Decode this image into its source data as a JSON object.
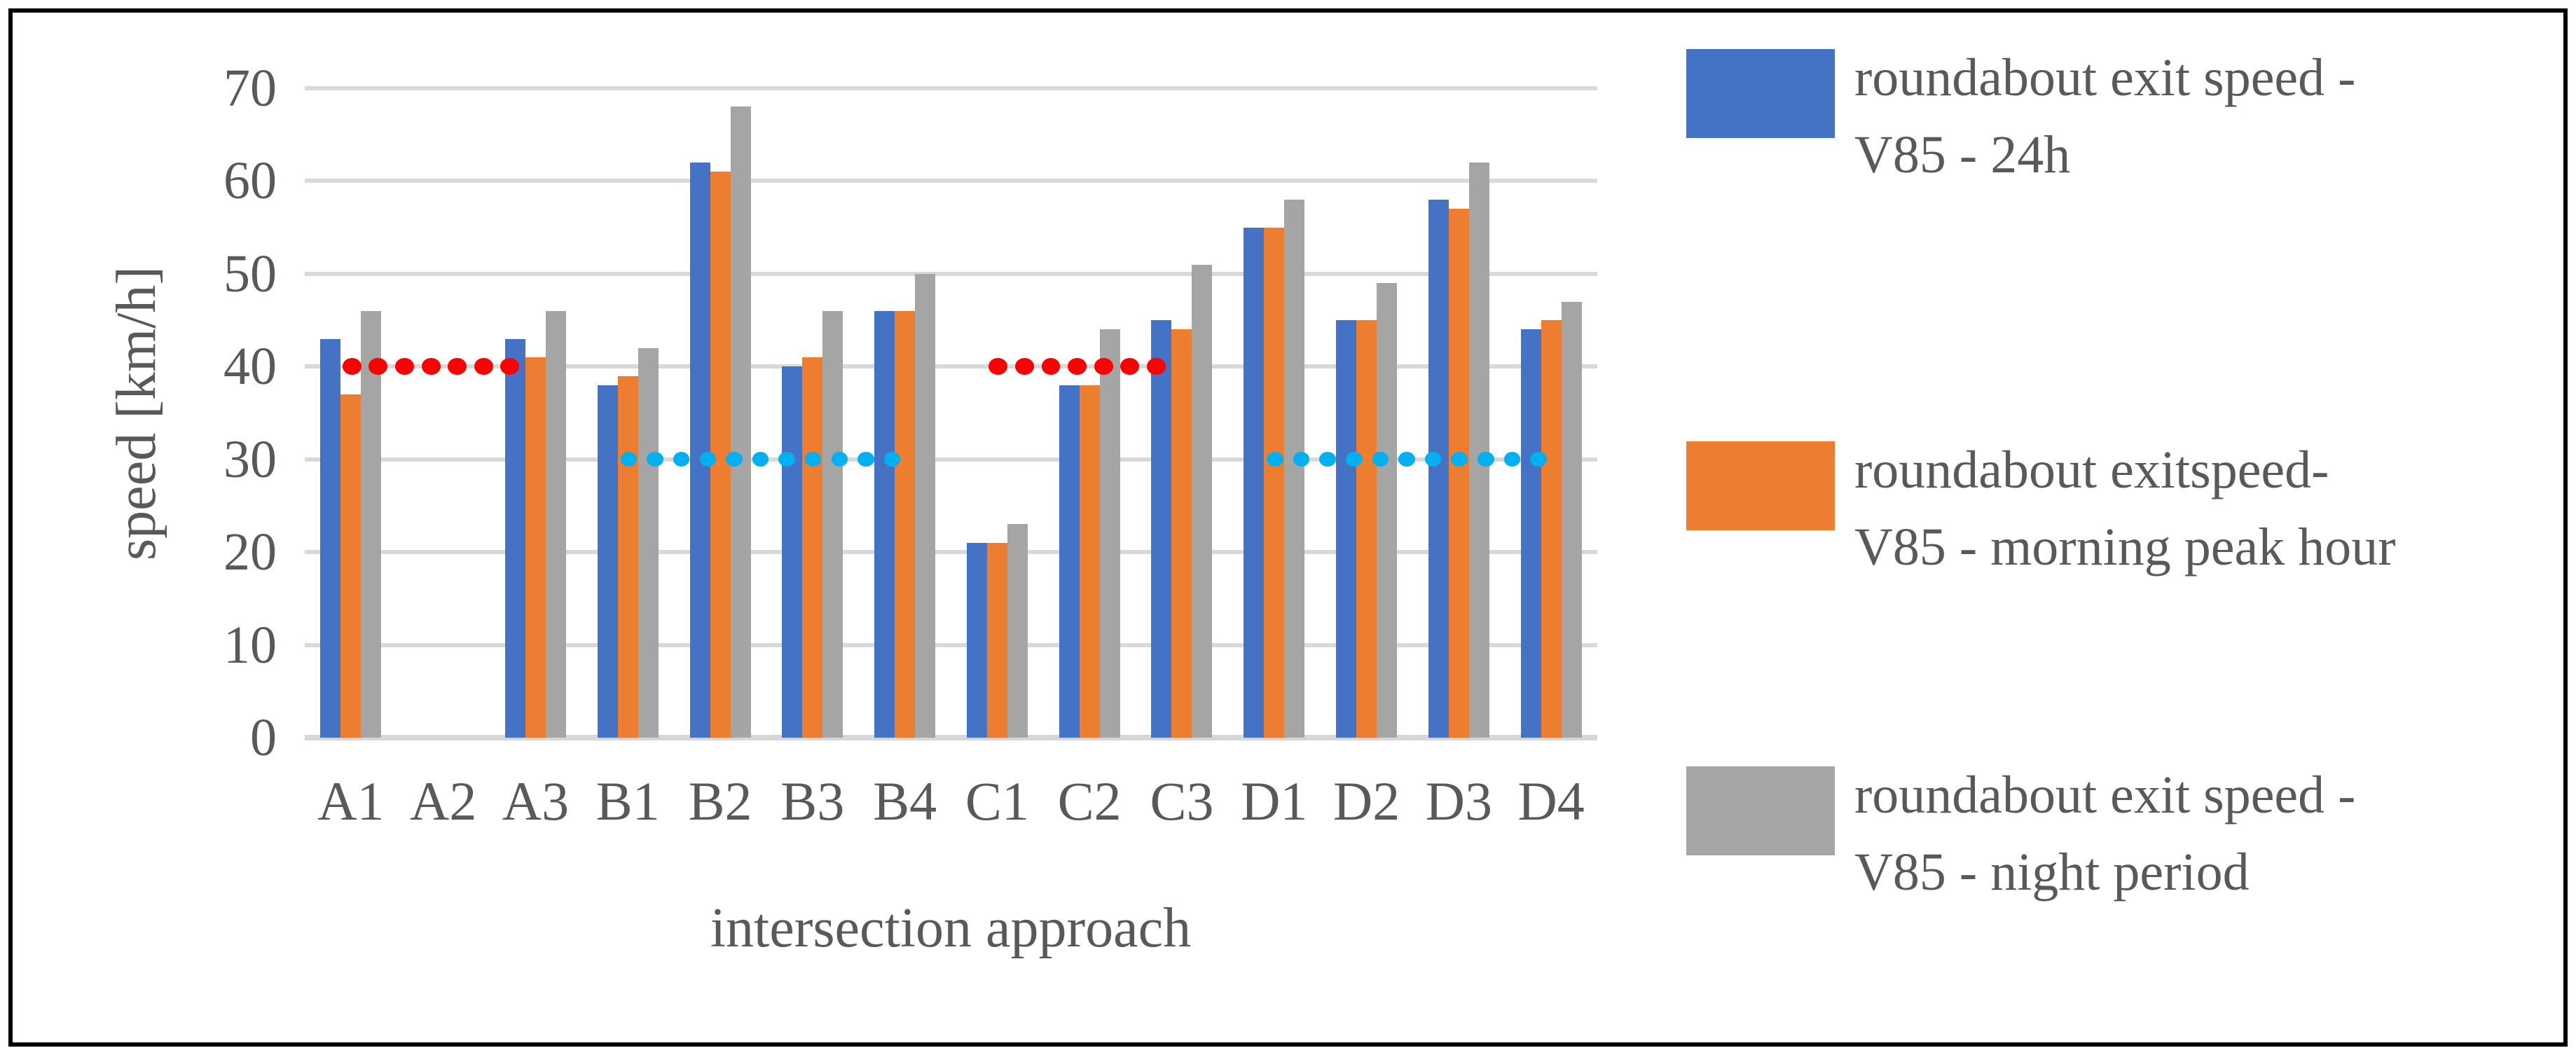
{
  "chart_data": {
    "type": "bar",
    "title": "",
    "xlabel": "intersection approach",
    "ylabel": "speed [km/h]",
    "ylim": [
      0,
      70
    ],
    "yticks": [
      0,
      10,
      20,
      30,
      40,
      50,
      60,
      70
    ],
    "grid": "horizontal",
    "legend_position": "right",
    "categories": [
      "A1",
      "A2",
      "A3",
      "B1",
      "B2",
      "B3",
      "B4",
      "C1",
      "C2",
      "C3",
      "D1",
      "D2",
      "D3",
      "D4"
    ],
    "series": [
      {
        "name": "roundabout exit speed - V85 - 24h",
        "color": "#4472C4",
        "values": [
          43,
          null,
          43,
          38,
          62,
          40,
          46,
          21,
          38,
          45,
          55,
          45,
          58,
          44
        ]
      },
      {
        "name": "roundabout exitspeed- V85 - morning peak hour",
        "color": "#ED7D31",
        "values": [
          37,
          null,
          41,
          39,
          61,
          41,
          46,
          21,
          38,
          44,
          55,
          45,
          57,
          45
        ]
      },
      {
        "name": "roundabout exit speed - V85 - night period",
        "color": "#A5A5A5",
        "values": [
          46,
          null,
          46,
          42,
          68,
          46,
          50,
          23,
          44,
          51,
          58,
          49,
          62,
          47
        ]
      }
    ],
    "annotations": [
      {
        "name": "dotted-limit-line-40-A",
        "value": 40,
        "color": "#FF0000",
        "from_category": "A1",
        "to_category": "A3",
        "dots": 7
      },
      {
        "name": "dotted-limit-line-30-B",
        "value": 30,
        "color": "#00B0F0",
        "from_category": "B1",
        "to_category": "B4",
        "dots": 11
      },
      {
        "name": "dotted-limit-line-40-C",
        "value": 40,
        "color": "#FF0000",
        "from_category": "C1",
        "to_category": "C3",
        "dots": 7
      },
      {
        "name": "dotted-limit-line-30-D",
        "value": 30,
        "color": "#00B0F0",
        "from_category": "D1",
        "to_category": "D4",
        "dots": 11
      }
    ],
    "legend": {
      "entries": [
        {
          "label_line1": "roundabout exit speed -",
          "label_line2": "V85 - 24h",
          "color": "#4472C4"
        },
        {
          "label_line1": "roundabout exitspeed-",
          "label_line2": "V85 - morning peak hour",
          "color": "#ED7D31"
        },
        {
          "label_line1": "roundabout exit speed -",
          "label_line2": "V85 - night period",
          "color": "#A5A5A5"
        }
      ]
    }
  },
  "style": {
    "axis_text_color": "#595959",
    "gridline_color": "#D9D9D9",
    "background_color": "#FFFFFF",
    "border_color": "#000000"
  }
}
